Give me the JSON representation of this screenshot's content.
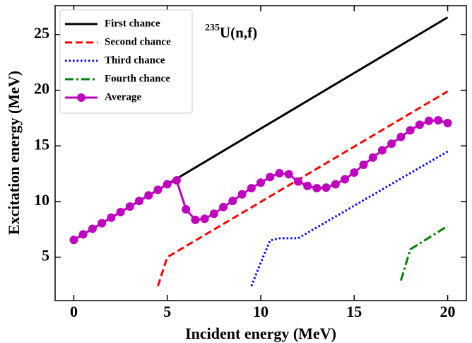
{
  "chart_data": {
    "type": "line",
    "xlabel": "Incident energy (MeV)",
    "ylabel": "Excitation energy (MeV)",
    "annotation": {
      "sup": "235",
      "text": "U(n,f)"
    },
    "xlim": [
      -1,
      21
    ],
    "ylim": [
      1.1,
      27.6
    ],
    "xticks": [
      0,
      5,
      10,
      15,
      20
    ],
    "yticks": [
      5,
      10,
      15,
      20,
      25
    ],
    "legend": "upper left",
    "series": [
      {
        "name": "First chance",
        "color": "#000000",
        "dash": "solid",
        "x": [
          0,
          20
        ],
        "values": [
          6.55,
          26.55
        ]
      },
      {
        "name": "Second chance",
        "color": "#ff0000",
        "dash": "dashed",
        "x": [
          4.5,
          5,
          20
        ],
        "values": [
          2.4,
          5.0,
          19.9
        ]
      },
      {
        "name": "Third chance",
        "color": "#0000ff",
        "dash": "dotted",
        "x": [
          9.5,
          10,
          10.5,
          11,
          12,
          20
        ],
        "values": [
          2.4,
          4.5,
          6.5,
          6.7,
          6.7,
          14.5
        ]
      },
      {
        "name": "Fourth chance",
        "color": "#008000",
        "dash": "dashdot",
        "x": [
          17.5,
          18,
          20
        ],
        "values": [
          2.9,
          5.7,
          7.8
        ]
      },
      {
        "name": "Average",
        "color": "#bf00bf",
        "dash": "solid",
        "marker": "circle",
        "x": [
          0,
          0.5,
          1,
          1.5,
          2,
          2.5,
          3,
          3.5,
          4,
          4.5,
          5,
          5.5,
          6,
          6.5,
          7,
          7.5,
          8,
          8.5,
          9,
          9.5,
          10,
          10.5,
          11,
          11.5,
          12,
          12.5,
          13,
          13.5,
          14,
          14.5,
          15,
          15.5,
          16,
          16.5,
          17,
          17.5,
          18,
          18.5,
          19,
          19.5,
          20
        ],
        "values": [
          6.55,
          7.05,
          7.55,
          8.05,
          8.55,
          9.05,
          9.55,
          10.05,
          10.55,
          11.05,
          11.55,
          11.9,
          9.3,
          8.35,
          8.45,
          8.9,
          9.5,
          10.05,
          10.65,
          11.2,
          11.7,
          12.2,
          12.55,
          12.45,
          11.8,
          11.4,
          11.2,
          11.25,
          11.55,
          12.0,
          12.6,
          13.3,
          13.95,
          14.6,
          15.2,
          15.8,
          16.4,
          16.9,
          17.25,
          17.3,
          17.05
        ]
      }
    ]
  }
}
